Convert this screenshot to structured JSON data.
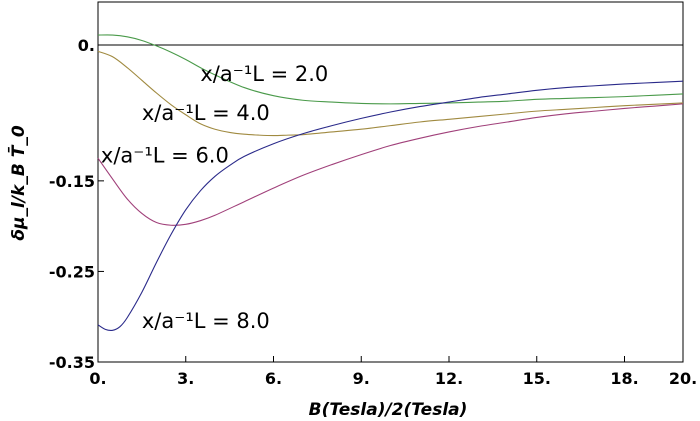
{
  "chart_data": {
    "type": "line",
    "title": "",
    "xlabel": "B(Tesla)/2(Tesla)",
    "ylabel": "δμ_l/k_B T̄_0",
    "xlim": [
      0,
      20
    ],
    "ylim": [
      -0.35,
      0.0
    ],
    "x_ticks": [
      0,
      3,
      6,
      9,
      12,
      15,
      18,
      20
    ],
    "x_tick_labels": [
      "0.",
      "3.",
      "6.",
      "9.",
      "12.",
      "15.",
      "18.",
      "20."
    ],
    "y_ticks": [
      0.0,
      -0.15,
      -0.25,
      -0.35
    ],
    "y_tick_labels": [
      "0.",
      "-0.15",
      "-0.25",
      "-0.35"
    ],
    "grid": false,
    "zero_line": true,
    "series": [
      {
        "color": "#4a9a4a",
        "label": "x/a⁻¹L = 2.0",
        "x": [
          0,
          0.5,
          1,
          1.5,
          2,
          2.5,
          3,
          3.5,
          4,
          5,
          6,
          7,
          8,
          9,
          10,
          11,
          12,
          13,
          14,
          15,
          16,
          17,
          18,
          19,
          20
        ],
        "y": [
          0.011,
          0.011,
          0.009,
          0.005,
          -0.001,
          -0.008,
          -0.016,
          -0.025,
          -0.033,
          -0.047,
          -0.056,
          -0.061,
          -0.063,
          -0.0645,
          -0.065,
          -0.0645,
          -0.064,
          -0.063,
          -0.062,
          -0.06,
          -0.059,
          -0.058,
          -0.057,
          -0.0555,
          -0.054
        ]
      },
      {
        "color": "#a08a40",
        "label": "x/a⁻¹L = 4.0",
        "x": [
          0,
          0.5,
          1,
          1.5,
          2,
          2.5,
          3,
          3.5,
          4,
          4.5,
          5,
          5.5,
          6,
          6.5,
          7,
          8,
          9,
          10,
          11,
          12,
          13,
          14,
          15,
          16,
          17,
          18,
          19,
          20
        ],
        "y": [
          -0.007,
          -0.013,
          -0.025,
          -0.039,
          -0.053,
          -0.066,
          -0.077,
          -0.087,
          -0.093,
          -0.0965,
          -0.0985,
          -0.0995,
          -0.1,
          -0.0995,
          -0.099,
          -0.096,
          -0.093,
          -0.089,
          -0.085,
          -0.082,
          -0.079,
          -0.076,
          -0.073,
          -0.071,
          -0.069,
          -0.067,
          -0.0655,
          -0.064
        ]
      },
      {
        "color": "#a0407a",
        "label": "x/a⁻¹L = 6.0",
        "x": [
          0,
          0.5,
          1,
          1.5,
          2,
          2.5,
          3,
          3.5,
          4,
          5,
          6,
          7,
          8,
          9,
          10,
          11,
          12,
          13,
          14,
          15,
          16,
          17,
          18,
          19,
          20
        ],
        "y": [
          -0.125,
          -0.148,
          -0.17,
          -0.186,
          -0.196,
          -0.199,
          -0.198,
          -0.194,
          -0.188,
          -0.173,
          -0.158,
          -0.144,
          -0.132,
          -0.121,
          -0.111,
          -0.103,
          -0.096,
          -0.09,
          -0.085,
          -0.08,
          -0.076,
          -0.073,
          -0.07,
          -0.0675,
          -0.065
        ]
      },
      {
        "color": "#2a2a8a",
        "label": "x/a⁻¹L = 8.0",
        "x": [
          0,
          0.25,
          0.5,
          0.75,
          1,
          1.5,
          2,
          2.5,
          3,
          3.5,
          4,
          4.5,
          5,
          6,
          7,
          8,
          9,
          10,
          11,
          12,
          13,
          14,
          15,
          16,
          17,
          18,
          19,
          20
        ],
        "y": [
          -0.309,
          -0.314,
          -0.315,
          -0.311,
          -0.301,
          -0.273,
          -0.24,
          -0.209,
          -0.182,
          -0.161,
          -0.145,
          -0.133,
          -0.123,
          -0.109,
          -0.098,
          -0.089,
          -0.081,
          -0.074,
          -0.068,
          -0.063,
          -0.058,
          -0.054,
          -0.05,
          -0.047,
          -0.045,
          -0.043,
          -0.0415,
          -0.04
        ]
      }
    ],
    "annotations": [
      {
        "text": "x/a⁻¹L = 2.0",
        "x": 3.5,
        "y": -0.032
      },
      {
        "text": "x/a⁻¹L = 4.0",
        "x": 1.5,
        "y": -0.075
      },
      {
        "text": "x/a⁻¹L = 6.0",
        "x": 0.1,
        "y": -0.122
      },
      {
        "text": "x/a⁻¹L = 8.0",
        "x": 1.5,
        "y": -0.305
      }
    ]
  }
}
